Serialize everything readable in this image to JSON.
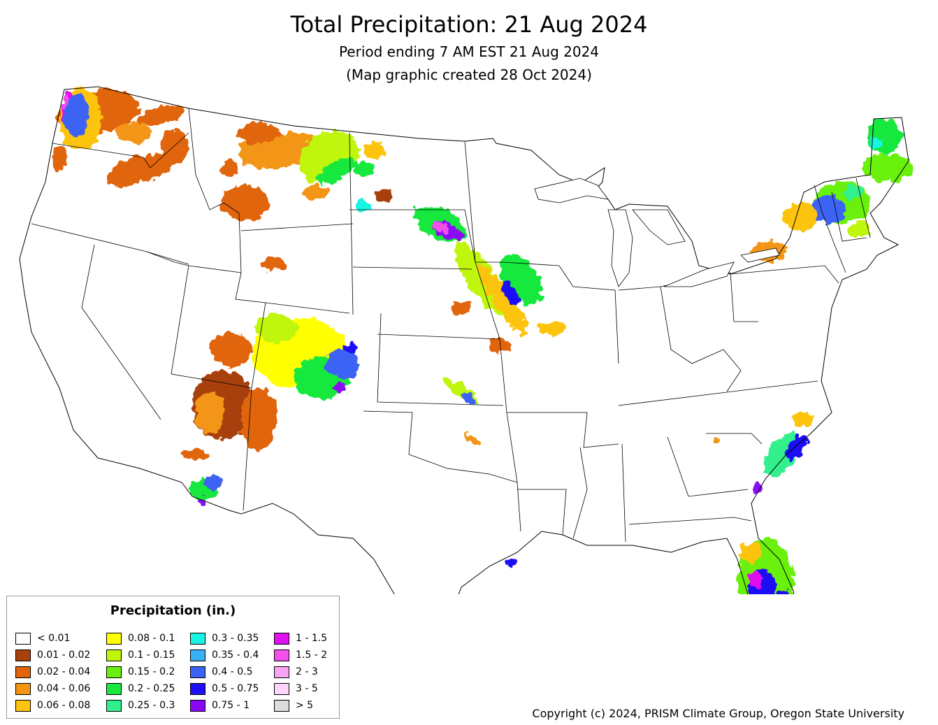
{
  "title": "Total Precipitation: 21 Aug 2024",
  "subtitle": "Period ending 7 AM EST 21 Aug 2024",
  "created": "(Map graphic created 28 Oct 2024)",
  "legend": {
    "title": "Precipitation (in.)",
    "items": [
      {
        "label": "< 0.01",
        "color": "#ffffff"
      },
      {
        "label": "0.01 - 0.02",
        "color": "#a8400a"
      },
      {
        "label": "0.02 - 0.04",
        "color": "#e0650a"
      },
      {
        "label": "0.04 - 0.06",
        "color": "#f39512"
      },
      {
        "label": "0.06 - 0.08",
        "color": "#fcc40f"
      },
      {
        "label": "0.08 - 0.1",
        "color": "#ffff00"
      },
      {
        "label": "0.1 - 0.15",
        "color": "#c0f50a"
      },
      {
        "label": "0.15 - 0.2",
        "color": "#6af010"
      },
      {
        "label": "0.2 - 0.25",
        "color": "#18e83c"
      },
      {
        "label": "0.25 - 0.3",
        "color": "#30f08c"
      },
      {
        "label": "0.3 - 0.35",
        "color": "#18f4e4"
      },
      {
        "label": "0.35 - 0.4",
        "color": "#38b0f4"
      },
      {
        "label": "0.4 - 0.5",
        "color": "#3c64f4"
      },
      {
        "label": "0.5 - 0.75",
        "color": "#1c10f4"
      },
      {
        "label": "0.75 - 1",
        "color": "#8a08f4"
      },
      {
        "label": "1 - 1.5",
        "color": "#e010f0"
      },
      {
        "label": "1.5 - 2",
        "color": "#f450ec"
      },
      {
        "label": "2 - 3",
        "color": "#f8a4f4"
      },
      {
        "label": "3 - 5",
        "color": "#fcd4fc"
      },
      {
        "label": "> 5",
        "color": "#dcdcdc"
      }
    ]
  },
  "copyright": "Copyright (c) 2024, PRISM Climate Group, Oregon State University"
}
